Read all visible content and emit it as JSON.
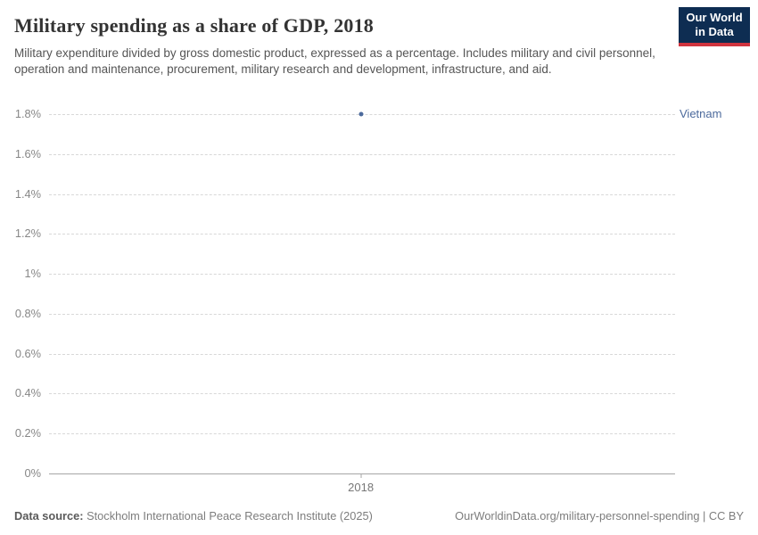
{
  "header": {
    "title": "Military spending as a share of GDP, 2018",
    "subtitle": "Military expenditure divided by gross domestic product, expressed as a percentage. Includes military and civil personnel, operation and maintenance, procurement, military research and development, infrastructure, and aid.",
    "logo": {
      "line1": "Our World",
      "line2": "in Data",
      "bg_color": "#0e2d52",
      "accent_color": "#d0343f"
    }
  },
  "chart_data": {
    "type": "scatter",
    "title": "Military spending as a share of GDP, 2018",
    "xlabel": "",
    "ylabel": "",
    "x": [
      2018
    ],
    "xtick_labels": [
      "2018"
    ],
    "series": [
      {
        "name": "Vietnam",
        "values": [
          1.8
        ],
        "color": "#4c6a9c"
      }
    ],
    "ylim": [
      0,
      1.8
    ],
    "yticks": [
      0,
      0.2,
      0.4,
      0.6,
      0.8,
      1,
      1.2,
      1.4,
      1.6,
      1.8
    ],
    "ytick_labels": [
      "0%",
      "0.2%",
      "0.4%",
      "0.6%",
      "0.8%",
      "1%",
      "1.2%",
      "1.4%",
      "1.6%",
      "1.8%"
    ],
    "grid": "horizontal-dashed",
    "legend_position": "right-inline-label"
  },
  "footer": {
    "data_source_label": "Data source:",
    "data_source_value": "Stockholm International Peace Research Institute (2025)",
    "attribution": "OurWorldinData.org/military-personnel-spending | CC BY"
  }
}
